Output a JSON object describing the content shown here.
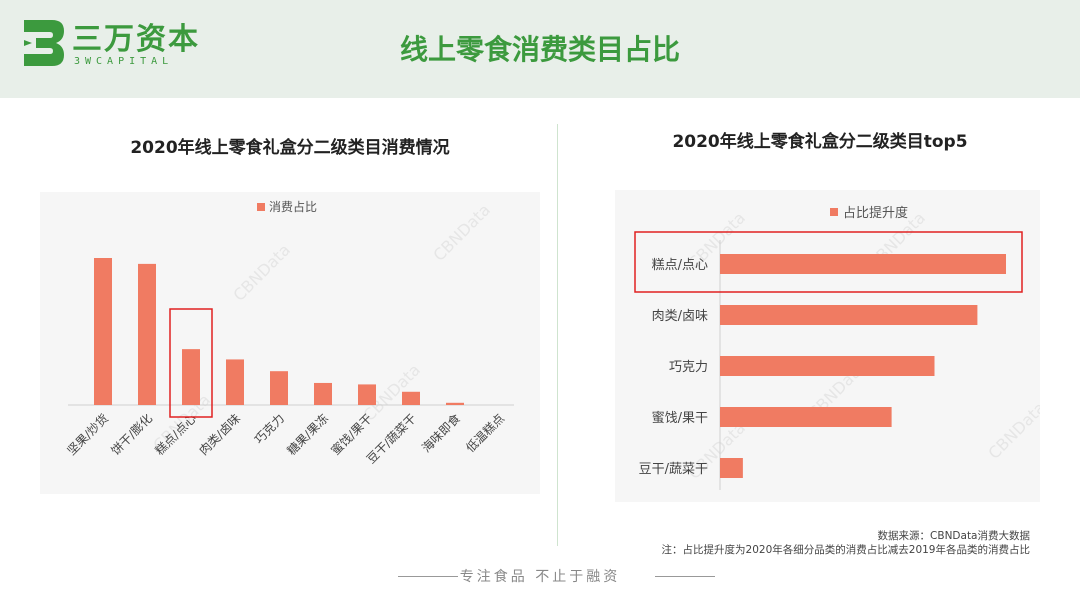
{
  "header": {
    "logo_cn": "三万资本",
    "logo_en": "3WCAPITAL",
    "title": "线上零食消费类目占比"
  },
  "colors": {
    "brand": "#3c9a3e",
    "bar": "#f07b62",
    "highlight": "#e02020"
  },
  "watermark": "CBNData",
  "footer": {
    "slogan": "专注食品 不止于融资"
  },
  "notes": {
    "source": "数据来源：CBNData消费大数据",
    "remark": "注：占比提升度为2020年各细分品类的消费占比减去2019年各品类的消费占比"
  },
  "chart_data": [
    {
      "type": "bar",
      "title": "2020年线上零食礼盒分二级类目消费情况",
      "legend": [
        "消费占比"
      ],
      "legend_position": "top",
      "categories": [
        "坚果/炒货",
        "饼干/膨化",
        "糕点/点心",
        "肉类/卤味",
        "巧克力",
        "糖果/果冻",
        "蜜饯/果干",
        "豆干/蔬菜干",
        "海味即食",
        "低温糕点"
      ],
      "values": [
        100,
        96,
        38,
        31,
        23,
        15,
        14,
        9,
        1.5,
        0
      ],
      "highlight_index": 2,
      "grid": false
    },
    {
      "type": "bar",
      "orientation": "horizontal",
      "title": "2020年线上零食礼盒分二级类目top5",
      "legend": [
        "占比提升度"
      ],
      "legend_position": "top",
      "categories": [
        "糕点/点心",
        "肉类/卤味",
        "巧克力",
        "蜜饯/果干",
        "豆干/蔬菜干"
      ],
      "values": [
        100,
        90,
        75,
        60,
        8
      ],
      "highlight_index": 0,
      "grid": false
    }
  ]
}
